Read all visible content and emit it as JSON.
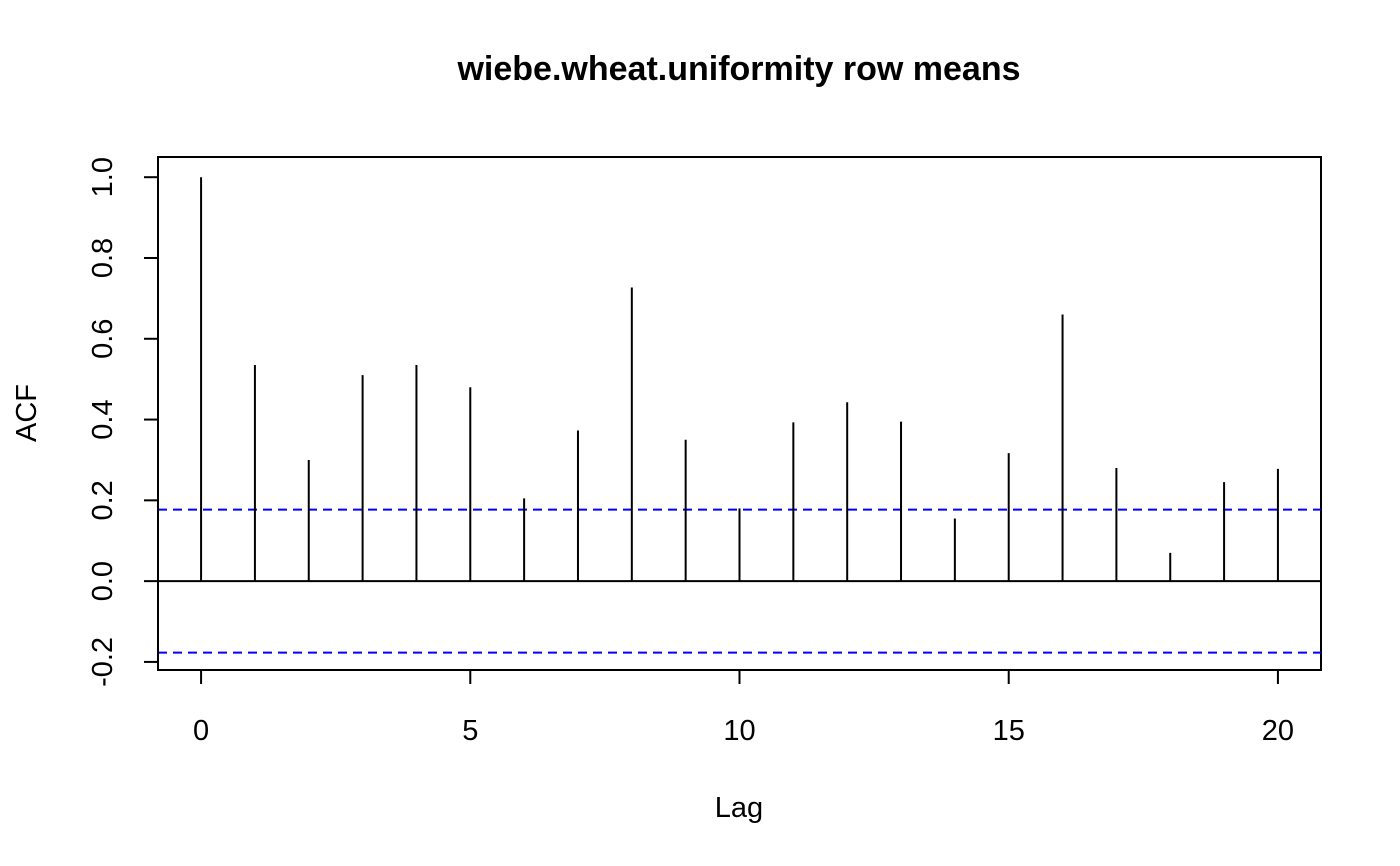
{
  "chart_data": {
    "type": "bar",
    "subtype": "acf-lollipop",
    "title": "wiebe.wheat.uniformity row means",
    "xlabel": "Lag",
    "ylabel": "ACF",
    "x": [
      0,
      1,
      2,
      3,
      4,
      5,
      6,
      7,
      8,
      9,
      10,
      11,
      12,
      13,
      14,
      15,
      16,
      17,
      18,
      19,
      20
    ],
    "values": [
      1.0,
      0.535,
      0.3,
      0.51,
      0.535,
      0.48,
      0.205,
      0.373,
      0.727,
      0.35,
      0.18,
      0.393,
      0.443,
      0.395,
      0.155,
      0.317,
      0.66,
      0.28,
      0.07,
      0.245,
      0.278
    ],
    "confidence_bounds": [
      0.177,
      -0.177
    ],
    "xlim": [
      -0.8,
      20.8
    ],
    "ylim": [
      -0.22,
      1.05
    ],
    "xticks": [
      "0",
      "5",
      "10",
      "15",
      "20"
    ],
    "yticks": [
      "-0.2",
      "0.0",
      "0.2",
      "0.4",
      "0.6",
      "0.8",
      "1.0"
    ],
    "colors": {
      "bars": "#000000",
      "bounds": "#0000ff",
      "zero_line": "#000000"
    },
    "grid": false,
    "legend": "none"
  }
}
